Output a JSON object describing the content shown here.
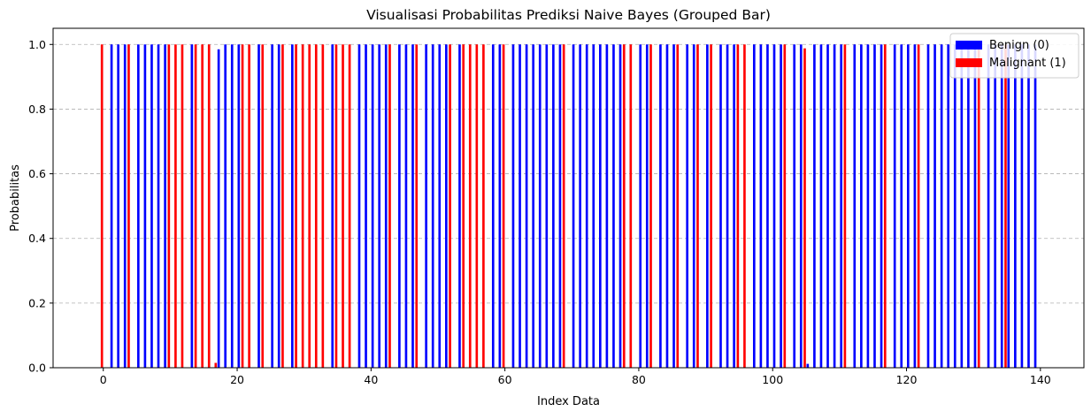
{
  "chart_data": {
    "type": "bar",
    "title": "Visualisasi Probabilitas Prediksi Naive Bayes (Grouped Bar)",
    "xlabel": "Index Data",
    "ylabel": "Probabilitas",
    "xlim": [
      -7.5,
      146.5
    ],
    "ylim": [
      0,
      1.05
    ],
    "xticks": [
      0,
      20,
      40,
      60,
      80,
      100,
      120,
      140
    ],
    "yticks": [
      0.0,
      0.2,
      0.4,
      0.6,
      0.8,
      1.0
    ],
    "xtick_labels": [
      "0",
      "20",
      "40",
      "60",
      "80",
      "100",
      "120",
      "140"
    ],
    "ytick_labels": [
      "0.0",
      "0.2",
      "0.4",
      "0.6",
      "0.8",
      "1.0"
    ],
    "grid": "y dashed",
    "legend_position": "top-right",
    "x": [
      0,
      1,
      2,
      3,
      4,
      5,
      6,
      7,
      8,
      9,
      10,
      11,
      12,
      13,
      14,
      15,
      16,
      17,
      18,
      19,
      20,
      21,
      22,
      23,
      24,
      25,
      26,
      27,
      28,
      29,
      30,
      31,
      32,
      33,
      34,
      35,
      36,
      37,
      38,
      39,
      40,
      41,
      42,
      43,
      44,
      45,
      46,
      47,
      48,
      49,
      50,
      51,
      52,
      53,
      54,
      55,
      56,
      57,
      58,
      59,
      60,
      61,
      62,
      63,
      64,
      65,
      66,
      67,
      68,
      69,
      70,
      71,
      72,
      73,
      74,
      75,
      76,
      77,
      78,
      79,
      80,
      81,
      82,
      83,
      84,
      85,
      86,
      87,
      88,
      89,
      90,
      91,
      92,
      93,
      94,
      95,
      96,
      97,
      98,
      99,
      100,
      101,
      102,
      103,
      104,
      105,
      106,
      107,
      108,
      109,
      110,
      111,
      112,
      113,
      114,
      115,
      116,
      117,
      118,
      119,
      120,
      121,
      122,
      123,
      124,
      125,
      126,
      127,
      128,
      129,
      130,
      131,
      132,
      133,
      134,
      135,
      136,
      137,
      138,
      139
    ],
    "series": [
      {
        "name": "Benign (0)",
        "color": "#0000ff",
        "values": [
          0,
          1,
          1,
          1,
          0,
          1,
          1,
          1,
          1,
          1,
          0,
          0,
          0,
          1,
          0,
          0,
          0,
          0.985,
          1,
          1,
          1,
          0,
          0,
          1,
          0,
          1,
          1,
          0,
          1,
          0,
          0,
          0,
          0,
          0,
          1,
          0,
          0,
          0,
          1,
          1,
          1,
          1,
          1,
          0,
          1,
          1,
          1,
          0,
          1,
          1,
          1,
          1,
          0,
          1,
          0,
          0,
          0,
          0,
          1,
          1,
          0,
          1,
          1,
          1,
          1,
          1,
          1,
          1,
          1,
          0,
          1,
          1,
          1,
          1,
          1,
          1,
          1,
          1,
          0,
          0,
          1,
          1,
          0,
          1,
          1,
          1,
          0,
          1,
          1,
          0,
          1,
          0,
          1,
          1,
          1,
          0,
          0,
          1,
          1,
          1,
          1,
          1,
          0,
          1,
          1,
          0.012,
          1,
          1,
          1,
          1,
          1,
          0,
          1,
          1,
          1,
          1,
          1,
          0,
          1,
          1,
          1,
          1,
          0,
          1,
          1,
          1,
          1,
          1,
          1,
          1,
          1,
          0,
          1,
          1,
          1,
          1,
          1,
          1,
          1,
          1
        ]
      },
      {
        "name": "Malignant (1)",
        "color": "#ff0000",
        "values": [
          1,
          0,
          0,
          0,
          1,
          0,
          0,
          0,
          0,
          0,
          1,
          1,
          1,
          0,
          1,
          1,
          1,
          0.015,
          0,
          0,
          0,
          1,
          1,
          0,
          1,
          0,
          0,
          1,
          0,
          1,
          1,
          1,
          1,
          1,
          0,
          1,
          1,
          1,
          0,
          0,
          0,
          0,
          0,
          1,
          0,
          0,
          0,
          1,
          0,
          0,
          0,
          0,
          1,
          0,
          1,
          1,
          1,
          1,
          0,
          0,
          1,
          0,
          0,
          0,
          0,
          0,
          0,
          0,
          0,
          1,
          0,
          0,
          0,
          0,
          0,
          0,
          0,
          0,
          1,
          1,
          0,
          0,
          1,
          0,
          0,
          0,
          1,
          0,
          0,
          1,
          0,
          1,
          0,
          0,
          0,
          1,
          1,
          0,
          0,
          0,
          0,
          0,
          1,
          0,
          0,
          0.988,
          0,
          0,
          0,
          0,
          0,
          1,
          0,
          0,
          0,
          0,
          0,
          1,
          0,
          0,
          0,
          0,
          1,
          0,
          0,
          0,
          0,
          0,
          0,
          0,
          0,
          1,
          0,
          0,
          0,
          1,
          0,
          0,
          0,
          0
        ]
      }
    ]
  }
}
